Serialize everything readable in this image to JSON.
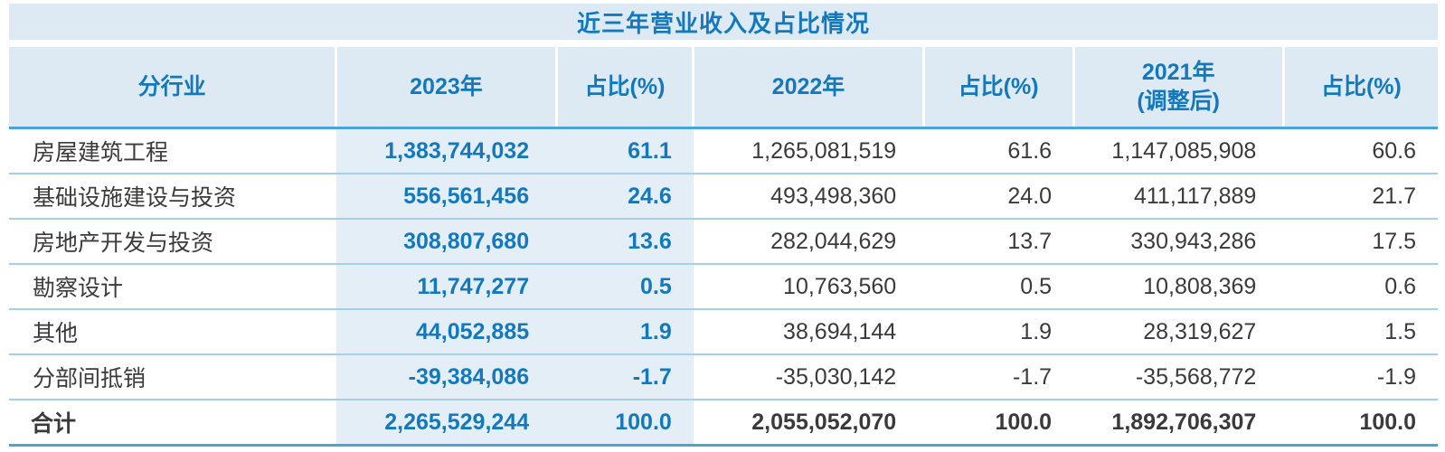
{
  "title": "近三年营业收入及占比情况",
  "colors": {
    "accent": "#1478bd",
    "panel_bg": "#ddeaf3",
    "highlight_bg": "#e4eef6",
    "ink": "#3a3a3a",
    "soft_line": "#a5cfe7",
    "strong_line": "#4aa5d7"
  },
  "table": {
    "columns": [
      {
        "label": "分行业"
      },
      {
        "label": "2023年"
      },
      {
        "label": "占比(%)"
      },
      {
        "label": "2022年"
      },
      {
        "label": "占比(%)"
      },
      {
        "label": "2021年",
        "sublabel": "(调整后)"
      },
      {
        "label": "占比(%)"
      }
    ],
    "rows": [
      {
        "label": "房屋建筑工程",
        "y2023": "1,383,744,032",
        "pct2023": "61.1",
        "y2022": "1,265,081,519",
        "pct2022": "61.6",
        "y2021": "1,147,085,908",
        "pct2021": "60.6"
      },
      {
        "label": "基础设施建设与投资",
        "y2023": "556,561,456",
        "pct2023": "24.6",
        "y2022": "493,498,360",
        "pct2022": "24.0",
        "y2021": "411,117,889",
        "pct2021": "21.7"
      },
      {
        "label": "房地产开发与投资",
        "y2023": "308,807,680",
        "pct2023": "13.6",
        "y2022": "282,044,629",
        "pct2022": "13.7",
        "y2021": "330,943,286",
        "pct2021": "17.5"
      },
      {
        "label": "勘察设计",
        "y2023": "11,747,277",
        "pct2023": "0.5",
        "y2022": "10,763,560",
        "pct2022": "0.5",
        "y2021": "10,808,369",
        "pct2021": "0.6"
      },
      {
        "label": "其他",
        "y2023": "44,052,885",
        "pct2023": "1.9",
        "y2022": "38,694,144",
        "pct2022": "1.9",
        "y2021": "28,319,627",
        "pct2021": "1.5"
      },
      {
        "label": "分部间抵销",
        "y2023": "-39,384,086",
        "pct2023": "-1.7",
        "y2022": "-35,030,142",
        "pct2022": "-1.7",
        "y2021": "-35,568,772",
        "pct2021": "-1.9"
      }
    ],
    "total_row": {
      "label": "合计",
      "y2023": "2,265,529,244",
      "pct2023": "100.0",
      "y2022": "2,055,052,070",
      "pct2022": "100.0",
      "y2021": "1,892,706,307",
      "pct2021": "100.0"
    }
  }
}
